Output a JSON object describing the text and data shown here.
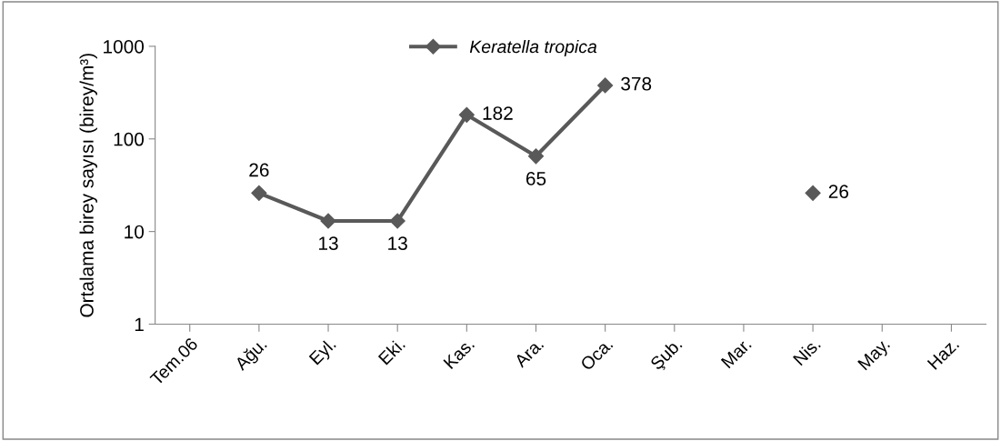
{
  "chart_data": {
    "type": "line",
    "ylabel": "Ortalama birey sayısı (birey/m³)",
    "categories": [
      "Tem.06",
      "Ağu.",
      "Eyl.",
      "Eki.",
      "Kas.",
      "Ara.",
      "Oca.",
      "Şub.",
      "Mar.",
      "Nis.",
      "May.",
      "Haz."
    ],
    "series": [
      {
        "name": "Keratella tropica",
        "color": "#595959",
        "values": [
          null,
          26,
          13,
          13,
          182,
          65,
          378,
          null,
          null,
          26,
          null,
          null
        ]
      }
    ],
    "log": "y",
    "ylim": [
      1,
      1000
    ],
    "yticks": [
      1,
      10,
      100,
      1000
    ],
    "grid": false,
    "legend": "top",
    "marker": "diamond",
    "line_style": "solid",
    "data_labels": true
  }
}
